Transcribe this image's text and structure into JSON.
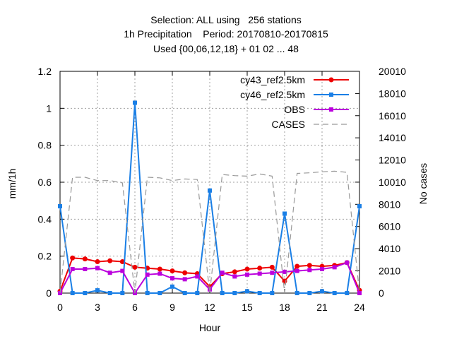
{
  "chart_data": {
    "type": "line",
    "title_lines": [
      "Selection: ALL using   256 stations",
      "1h Precipitation    Period: 20170810-20170815",
      "Used {00,06,12,18} + 01 02 ... 48"
    ],
    "xlabel": "Hour",
    "ylabel": "mm/1h",
    "y2label": "No cases",
    "xlim": [
      0,
      24
    ],
    "ylim": [
      0,
      1.2
    ],
    "y2lim": [
      0,
      20010
    ],
    "xticks": [
      0,
      3,
      6,
      9,
      12,
      15,
      18,
      21,
      24
    ],
    "yticks": [
      0,
      0.2,
      0.4,
      0.6,
      0.8,
      1,
      1.2
    ],
    "y2ticks": [
      0,
      2010,
      4010,
      6010,
      8010,
      10010,
      12010,
      14010,
      16010,
      18010,
      20010
    ],
    "grid": true,
    "legend_position": "top-right",
    "x": [
      0,
      1,
      2,
      3,
      4,
      5,
      6,
      7,
      8,
      9,
      10,
      11,
      12,
      13,
      14,
      15,
      16,
      17,
      18,
      19,
      20,
      21,
      22,
      23,
      24
    ],
    "series": [
      {
        "name": "cy43_ref2.5km",
        "color": "#ee0000",
        "axis": "y1",
        "marker": "filled-circle",
        "values": [
          0.01,
          0.19,
          0.185,
          0.17,
          0.175,
          0.17,
          0.14,
          0.135,
          0.13,
          0.12,
          0.11,
          0.105,
          0.035,
          0.105,
          0.115,
          0.13,
          0.135,
          0.14,
          0.065,
          0.145,
          0.15,
          0.145,
          0.15,
          0.165,
          0.015
        ]
      },
      {
        "name": "cy46_ref2.5km",
        "color": "#1a7fe6",
        "axis": "y1",
        "marker": "filled-square",
        "values": [
          0.47,
          0.0,
          0.0,
          0.015,
          0.0,
          0.0,
          1.03,
          0.0,
          0.0,
          0.035,
          0.0,
          0.0,
          0.555,
          0.0,
          0.0,
          0.01,
          0.0,
          0.0,
          0.43,
          0.0,
          0.0,
          0.01,
          0.0,
          0.0,
          0.47
        ]
      },
      {
        "name": "OBS",
        "color": "#bb00dd",
        "axis": "y1",
        "marker": "filled-square",
        "values": [
          0.0,
          0.13,
          0.13,
          0.135,
          0.11,
          0.12,
          0.0,
          0.1,
          0.105,
          0.08,
          0.075,
          0.09,
          0.02,
          0.11,
          0.09,
          0.1,
          0.105,
          0.11,
          0.115,
          0.12,
          0.125,
          0.13,
          0.14,
          0.165,
          0.0
        ]
      },
      {
        "name": "CASES",
        "color": "#999999",
        "axis": "y2",
        "dashed": true,
        "values": [
          0,
          10450,
          10450,
          10150,
          10150,
          9950,
          0,
          10450,
          10400,
          10150,
          10300,
          10250,
          0,
          10700,
          10600,
          10550,
          10750,
          10550,
          0,
          10800,
          10850,
          10950,
          11000,
          10900,
          0
        ]
      }
    ]
  }
}
